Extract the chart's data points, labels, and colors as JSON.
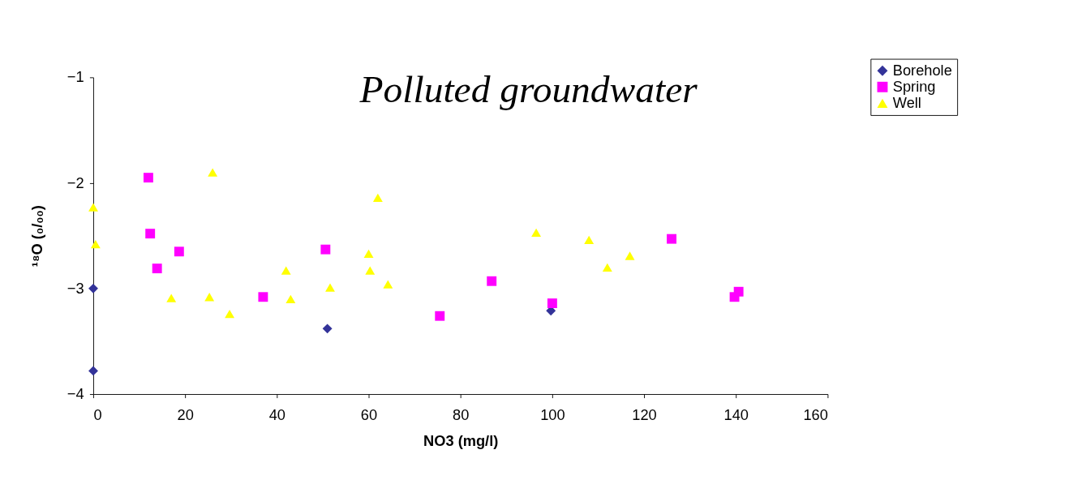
{
  "chart_data": {
    "type": "scatter",
    "xlabel": "NO3 (mg/l)",
    "ylabel": "¹⁸O (₀/₀₀)",
    "xlim": [
      0,
      160
    ],
    "xticks": [
      0,
      20,
      40,
      60,
      80,
      100,
      120,
      140,
      160
    ],
    "ylim": [
      -4,
      -1
    ],
    "yticks": [
      -4,
      -3,
      -2,
      -1
    ],
    "grid": false,
    "legend": "top right",
    "annotations": [
      "Polluted groundwater"
    ],
    "series": [
      {
        "name": "Borehole",
        "color": "#333399",
        "marker": "diamond",
        "x": [
          0,
          0,
          51,
          99.7
        ],
        "values": [
          -3.0,
          -3.78,
          -3.38,
          -3.21
        ]
      },
      {
        "name": "Spring",
        "color": "#ff00ff",
        "marker": "square",
        "x": [
          12,
          12.4,
          13.9,
          18.7,
          37,
          50.6,
          75.5,
          86.8,
          100,
          126,
          139.7,
          140.6
        ],
        "values": [
          -1.95,
          -2.48,
          -2.81,
          -2.65,
          -3.08,
          -2.63,
          -3.26,
          -2.93,
          -3.14,
          -2.53,
          -3.08,
          -3.03
        ]
      },
      {
        "name": "Well",
        "color": "#ffff00",
        "marker": "triangle",
        "x": [
          0,
          0.5,
          17,
          26,
          25.3,
          29.7,
          42,
          43,
          51.6,
          62,
          60,
          60.3,
          64.2,
          96.5,
          108,
          112,
          116.9
        ],
        "values": [
          -2.23,
          -2.58,
          -3.09,
          -1.9,
          -3.08,
          -3.24,
          -2.83,
          -3.1,
          -2.99,
          -2.14,
          -2.67,
          -2.83,
          -2.96,
          -2.47,
          -2.54,
          -2.8,
          -2.69
        ]
      }
    ]
  }
}
